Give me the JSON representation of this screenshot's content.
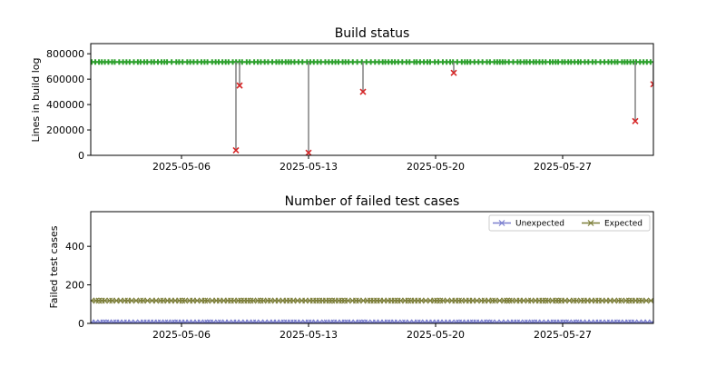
{
  "chart_data": [
    {
      "type": "scatter",
      "title": "Build status",
      "xlabel": "",
      "ylabel": "Lines in build log",
      "xlim": [
        "2025-05-01",
        "2025-06-01"
      ],
      "ylim": [
        0,
        880000
      ],
      "yticks": [
        0,
        200000,
        400000,
        600000,
        800000
      ],
      "ytick_labels": [
        "0",
        "200000",
        "400000",
        "600000",
        "800000"
      ],
      "xticks": [
        "2025-05-06",
        "2025-05-13",
        "2025-05-20",
        "2025-05-27"
      ],
      "grid": false,
      "line_value": 735000,
      "failures": [
        {
          "date": "2025-05-09",
          "value": 40000
        },
        {
          "date": "2025-05-09",
          "value": 550000
        },
        {
          "date": "2025-05-13",
          "value": 20000
        },
        {
          "date": "2025-05-16",
          "value": 500000
        },
        {
          "date": "2025-05-21",
          "value": 650000
        },
        {
          "date": "2025-05-31",
          "value": 270000
        },
        {
          "date": "2025-06-01",
          "value": 560000
        }
      ],
      "success_value": 735000,
      "colors": {
        "success": "#2ca02c",
        "failure": "#d62728",
        "line": "#808080"
      }
    },
    {
      "type": "line",
      "title": "Number of failed test cases",
      "xlabel": "",
      "ylabel": "Failed test cases",
      "xlim": [
        "2025-05-01",
        "2025-06-01"
      ],
      "ylim": [
        0,
        580
      ],
      "yticks": [
        0,
        200,
        400
      ],
      "ytick_labels": [
        "0",
        "200",
        "400"
      ],
      "xticks": [
        "2025-05-06",
        "2025-05-13",
        "2025-05-20",
        "2025-05-27"
      ],
      "grid": false,
      "legend": "top-right",
      "series": [
        {
          "name": "Unexpected",
          "value": 5,
          "color": "#7b7fcf"
        },
        {
          "name": "Expected",
          "value": 118,
          "color": "#7d7f3a"
        }
      ]
    }
  ]
}
